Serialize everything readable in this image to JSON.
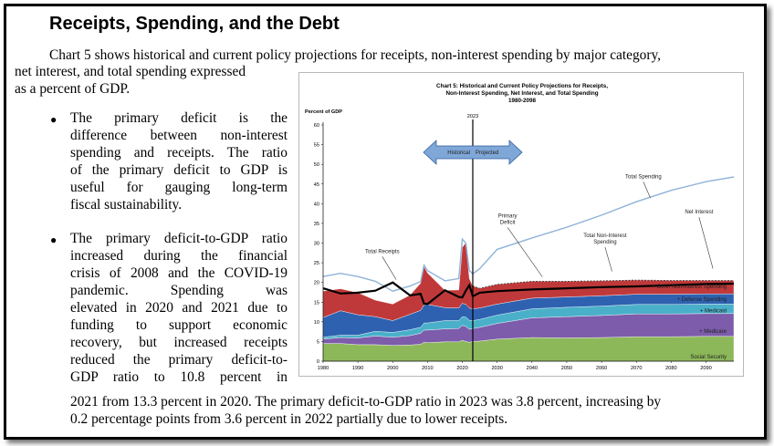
{
  "section": {
    "title": "Receipts, Spending, and the Debt"
  },
  "intro": {
    "line1": "Chart 5 shows historical and current policy projections for receipts, non-interest spending by major category,",
    "line2": "net interest, and total spending expressed",
    "line3": "as a percent of GDP."
  },
  "bullets": [
    {
      "lines": [
        "The primary deficit is the",
        "difference between non-interest",
        "spending and receipts. The ratio",
        "of the primary deficit to GDP is",
        "useful for gauging long-term",
        "fiscal sustainability."
      ]
    },
    {
      "lines": [
        "The primary deficit-to-GDP ratio",
        "increased during the financial",
        "crisis of 2008 and the COVID-19",
        "pandemic. Spending was",
        "elevated in 2020 and 2021 due to",
        "funding to support economic",
        "recovery, but increased receipts",
        "reduced the primary deficit-to-",
        "GDP ratio to 10.8 percent in"
      ]
    }
  ],
  "closing": {
    "line1": "2021 from 13.3 percent in 2020. The primary deficit-to-GDP ratio in 2023 was 3.8 percent, increasing by",
    "line2": "0.2 percentage points from 3.6 percent in 2022 partially due to lower receipts."
  },
  "chart_data": {
    "type": "area",
    "title_lines": [
      "Chart 5:  Historical and Current Policy Projections for Receipts,",
      "Non-Interest Spending, Net Interest, and Total Spending",
      "1980-2098"
    ],
    "ylabel": "Percent of GDP",
    "ylim": [
      0,
      60
    ],
    "yticks": [
      0,
      5,
      10,
      15,
      20,
      25,
      30,
      35,
      40,
      45,
      50,
      55,
      60
    ],
    "xlim": [
      1980,
      2098
    ],
    "xticks": [
      1980,
      1990,
      2000,
      2010,
      2020,
      2030,
      2040,
      2050,
      2060,
      2070,
      2080,
      2090
    ],
    "divider_year": 2023,
    "divider_label": "2023",
    "arrow_labels": {
      "historical": "Historical",
      "projected": "Projected"
    },
    "x": [
      1980,
      1985,
      1990,
      1995,
      2000,
      2005,
      2008,
      2009,
      2010,
      2015,
      2019,
      2020,
      2021,
      2022,
      2023,
      2025,
      2030,
      2040,
      2050,
      2060,
      2070,
      2080,
      2090,
      2098
    ],
    "series": [
      {
        "name": "Social Security",
        "color": "#8db85a",
        "values": [
          4.5,
          4.5,
          4.2,
          4.2,
          4.0,
          4.1,
          4.3,
          4.8,
          4.7,
          4.9,
          4.9,
          5.3,
          5.0,
          4.8,
          5.0,
          5.1,
          5.6,
          6.0,
          5.9,
          6.0,
          6.2,
          6.2,
          6.3,
          6.3
        ]
      },
      {
        "name": "Medicare",
        "color": "#7d5cab",
        "values": [
          1.1,
          1.5,
          1.7,
          2.2,
          2.1,
          2.4,
          2.8,
          3.1,
          3.2,
          3.3,
          3.4,
          3.8,
          3.8,
          3.3,
          3.3,
          3.5,
          4.0,
          5.0,
          5.4,
          5.6,
          5.8,
          5.8,
          5.8,
          5.8
        ]
      },
      {
        "name": "Medicaid",
        "color": "#4ab0c9",
        "values": [
          0.5,
          0.6,
          0.7,
          1.2,
          1.2,
          1.5,
          1.5,
          1.8,
          1.8,
          2.1,
          2.0,
          2.2,
          2.4,
          2.3,
          2.0,
          2.0,
          2.1,
          2.3,
          2.4,
          2.4,
          2.4,
          2.4,
          2.4,
          2.4
        ]
      },
      {
        "name": "Defense Spending",
        "color": "#2e62b0",
        "values": [
          5.0,
          6.2,
          5.2,
          3.7,
          3.0,
          3.9,
          4.3,
          4.6,
          4.7,
          3.3,
          3.2,
          3.4,
          3.2,
          3.1,
          3.0,
          2.9,
          2.8,
          2.7,
          2.6,
          2.6,
          2.6,
          2.6,
          2.6,
          2.6
        ]
      },
      {
        "name": "Other Non-interest Spending",
        "color": "#c0393a",
        "values": [
          6.7,
          5.6,
          5.6,
          4.2,
          4.2,
          4.9,
          6.9,
          9.8,
          8.0,
          4.4,
          4.6,
          14.2,
          15.7,
          7.5,
          5.8,
          5.0,
          5.0,
          4.3,
          4.0,
          3.8,
          3.6,
          3.5,
          3.4,
          3.4
        ]
      }
    ],
    "receipts": [
      18.5,
      17.2,
      17.4,
      17.9,
      20.0,
      16.7,
      17.1,
      14.6,
      14.5,
      18.0,
      16.3,
      16.2,
      17.9,
      19.3,
      16.5,
      17.4,
      17.8,
      18.2,
      18.5,
      18.8,
      19.0,
      19.3,
      19.6,
      19.7
    ],
    "total_spending": [
      21.5,
      22.3,
      21.5,
      20.3,
      17.8,
      19.1,
      20.2,
      24.4,
      23.0,
      20.4,
      21.0,
      31.0,
      30.0,
      23.0,
      22.2,
      23.5,
      28.4,
      31.3,
      34.0,
      37.1,
      40.5,
      43.4,
      45.6,
      46.8
    ],
    "total_noninterest_spending": [
      null,
      null,
      null,
      null,
      null,
      null,
      null,
      null,
      null,
      null,
      null,
      null,
      null,
      null,
      19.1,
      18.5,
      19.5,
      20.3,
      20.3,
      20.4,
      20.6,
      20.5,
      20.5,
      20.5
    ],
    "annotations": [
      "Total Receipts",
      "Primary Deficit",
      "Total Non-Interest Spending",
      "Total Spending",
      "Net Interest"
    ],
    "legend_labels": [
      "Other Non-interest Spending",
      "Defense Spending",
      "Medicaid",
      "Medicare",
      "Social Security"
    ],
    "colors": {
      "total_spending_line": "#8fb3d9",
      "receipts_line": "#000000"
    }
  }
}
